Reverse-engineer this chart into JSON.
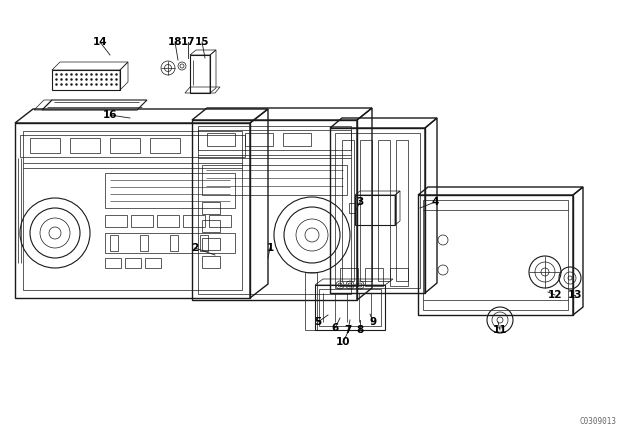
{
  "background_color": "#ffffff",
  "line_color": "#1a1a1a",
  "watermark": "C0309013",
  "fig_width": 6.4,
  "fig_height": 4.48,
  "dpi": 100,
  "lw_thin": 0.5,
  "lw_med": 0.8,
  "lw_thick": 1.0,
  "label_fontsize": 7.5,
  "watermark_fontsize": 5.5,
  "labels": [
    [
      "14",
      100,
      42,
      110,
      55
    ],
    [
      "18",
      175,
      42,
      178,
      60
    ],
    [
      "17",
      188,
      42,
      188,
      58
    ],
    [
      "15",
      202,
      42,
      205,
      58
    ],
    [
      "16",
      110,
      115,
      130,
      118
    ],
    [
      "2",
      195,
      248,
      215,
      255
    ],
    [
      "1",
      270,
      248,
      268,
      258
    ],
    [
      "3",
      360,
      202,
      356,
      210
    ],
    [
      "4",
      435,
      202,
      420,
      208
    ],
    [
      "5",
      318,
      322,
      328,
      315
    ],
    [
      "6",
      335,
      328,
      340,
      318
    ],
    [
      "7",
      348,
      330,
      350,
      320
    ],
    [
      "8",
      360,
      330,
      360,
      320
    ],
    [
      "9",
      373,
      322,
      370,
      314
    ],
    [
      "10",
      343,
      342,
      348,
      332
    ],
    [
      "11",
      500,
      330,
      498,
      322
    ],
    [
      "12",
      555,
      295,
      548,
      292
    ],
    [
      "13",
      575,
      295,
      572,
      295
    ]
  ]
}
